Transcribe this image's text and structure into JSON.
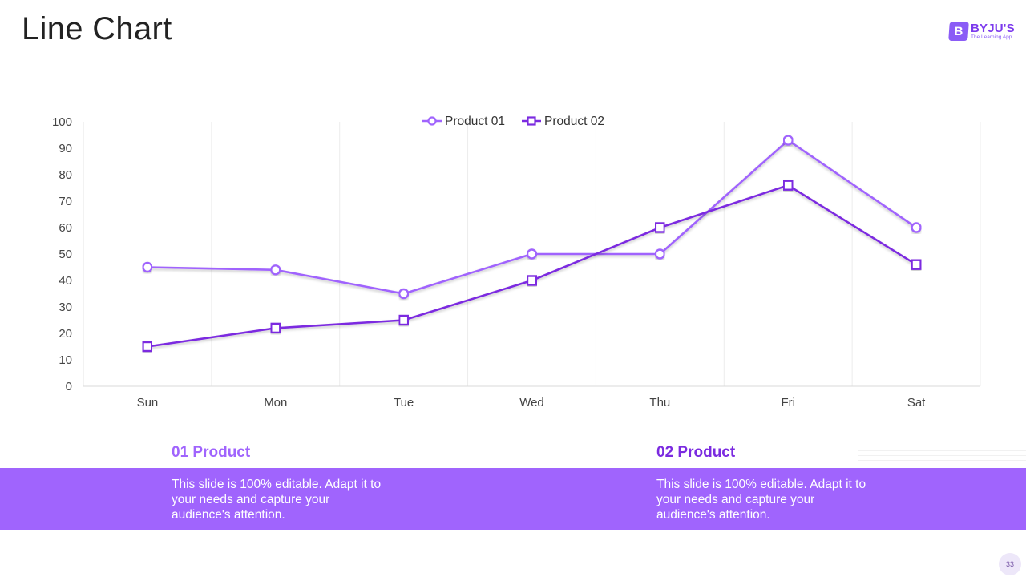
{
  "slide": {
    "title": "Line Chart",
    "page_number": "33"
  },
  "logo": {
    "mark": "B",
    "name": "BYJU'S",
    "tagline": "The Learning App"
  },
  "chart_data": {
    "type": "line",
    "title": "",
    "xlabel": "",
    "ylabel": "",
    "categories": [
      "Sun",
      "Mon",
      "Tue",
      "Wed",
      "Thu",
      "Fri",
      "Sat"
    ],
    "ylim": [
      0,
      100
    ],
    "yticks": [
      0,
      10,
      20,
      30,
      40,
      50,
      60,
      70,
      80,
      90,
      100
    ],
    "legend_position": "top-center",
    "series": [
      {
        "name": "Product 01",
        "marker": "circle",
        "color": "#a064fd",
        "values": [
          45,
          44,
          35,
          50,
          50,
          93,
          60
        ]
      },
      {
        "name": "Product 02",
        "marker": "square",
        "color": "#7b2be0",
        "values": [
          15,
          22,
          25,
          40,
          60,
          76,
          46
        ]
      }
    ]
  },
  "products": [
    {
      "title": "01 Product",
      "description": "This slide is 100% editable. Adapt it to your needs and capture your audience's attention."
    },
    {
      "title": "02 Product",
      "description": "This slide is 100% editable. Adapt it to your needs and capture your audience's attention."
    }
  ]
}
